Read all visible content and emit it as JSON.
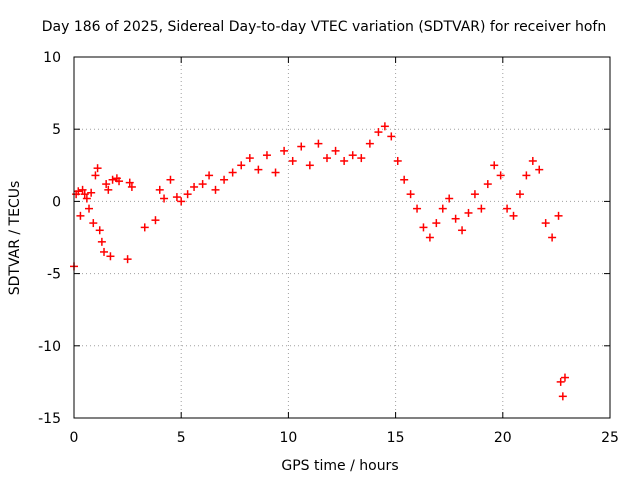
{
  "chart_data": {
    "type": "scatter",
    "title": "Day 186 of 2025, Sidereal Day-to-day VTEC variation (SDTVAR) for receiver hofn",
    "xlabel": "GPS time / hours",
    "ylabel": "SDTVAR / TECUs",
    "xlim": [
      0,
      25
    ],
    "ylim": [
      -15,
      10
    ],
    "xticks": [
      0,
      5,
      10,
      15,
      20,
      25
    ],
    "yticks": [
      -15,
      -10,
      -5,
      0,
      5,
      10
    ],
    "grid": true,
    "marker": "+",
    "color": "#ff0000",
    "series": [
      {
        "name": "SDTVAR",
        "x": [
          0.0,
          0.1,
          0.2,
          0.3,
          0.4,
          0.5,
          0.6,
          0.7,
          0.8,
          0.9,
          1.0,
          1.1,
          1.2,
          1.3,
          1.4,
          1.5,
          1.6,
          1.7,
          1.8,
          2.0,
          2.1,
          2.5,
          2.6,
          2.7,
          3.3,
          3.8,
          4.0,
          4.2,
          4.5,
          4.8,
          5.0,
          5.3,
          5.6,
          6.0,
          6.3,
          6.6,
          7.0,
          7.4,
          7.8,
          8.2,
          8.6,
          9.0,
          9.4,
          9.8,
          10.2,
          10.6,
          11.0,
          11.4,
          11.8,
          12.2,
          12.6,
          13.0,
          13.4,
          13.8,
          14.2,
          14.5,
          14.8,
          15.1,
          15.4,
          15.7,
          16.0,
          16.3,
          16.6,
          16.9,
          17.2,
          17.5,
          17.8,
          18.1,
          18.4,
          18.7,
          19.0,
          19.3,
          19.6,
          19.9,
          20.2,
          20.5,
          20.8,
          21.1,
          21.4,
          21.7,
          22.0,
          22.3,
          22.6,
          22.7,
          22.8,
          22.9
        ],
        "y": [
          -4.5,
          0.5,
          0.7,
          -1.0,
          0.8,
          0.5,
          0.2,
          -0.5,
          0.6,
          -1.5,
          1.8,
          2.3,
          -2.0,
          -2.8,
          -3.5,
          1.2,
          0.8,
          -3.8,
          1.5,
          1.6,
          1.4,
          -4.0,
          1.3,
          1.0,
          -1.8,
          -1.3,
          0.8,
          0.2,
          1.5,
          0.3,
          0.0,
          0.5,
          1.0,
          1.2,
          1.8,
          0.8,
          1.5,
          2.0,
          2.5,
          3.0,
          2.2,
          3.2,
          2.0,
          3.5,
          2.8,
          3.8,
          2.5,
          4.0,
          3.0,
          3.5,
          2.8,
          3.2,
          3.0,
          4.0,
          4.8,
          5.2,
          4.5,
          2.8,
          1.5,
          0.5,
          -0.5,
          -1.8,
          -2.5,
          -1.5,
          -0.5,
          0.2,
          -1.2,
          -2.0,
          -0.8,
          0.5,
          -0.5,
          1.2,
          2.5,
          1.8,
          -0.5,
          -1.0,
          0.5,
          1.8,
          2.8,
          2.2,
          -1.5,
          -2.5,
          -1.0,
          -12.5,
          -13.5,
          -12.2
        ]
      }
    ]
  }
}
